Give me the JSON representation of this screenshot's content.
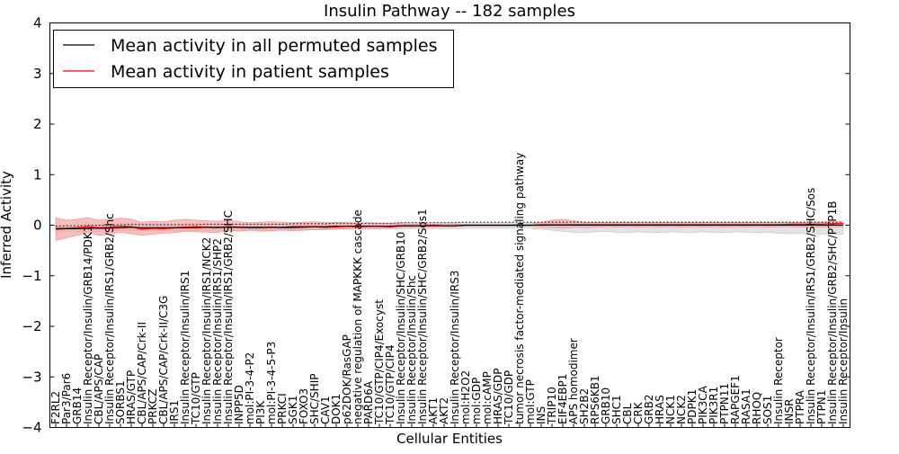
{
  "chart_data": {
    "type": "line",
    "title": "Insulin Pathway -- 182 samples",
    "xlabel": "Cellular Entities",
    "ylabel": "Inferred Activity",
    "ylim": [
      -4,
      4
    ],
    "yticks": [
      -4,
      -3,
      -2,
      -1,
      0,
      1,
      2,
      3,
      4
    ],
    "grid": false,
    "legend_position": "top-left",
    "categories": [
      "F2RL2",
      "Par3/Par6",
      "GRB14",
      "Insulin Receptor/Insulin/GRB14/PDK1",
      "CBL/APS/CAP",
      "Insulin Receptor/Insulin/IRS1/GRB2/Shc",
      "SORBS1",
      "HRAS/GTP",
      "CBL/APS/CAP/Crk-II",
      "PRKCZ",
      "CBL/APS/CAP/Crk-II/C3G",
      "IRS1",
      "Insulin Receptor/Insulin/IRS1",
      "TC10/GTP",
      "Insulin Receptor/Insulin/IRS1/NCK2",
      "Insulin Receptor/Insulin/IRS1/SHP2",
      "Insulin Receptor/Insulin/IRS1/GRB2/SHC",
      "INPP5D",
      "mol:PI-3-4-P2",
      "PI3K",
      "mol:PI-3-4-5-P3",
      "PRKCI",
      "SGK1",
      "FOXO3",
      "SHC/SHIP",
      "CAV1",
      "DOK1",
      "p62DOK/RasGAP",
      "negative regulation of MAPKKK cascade",
      "PARD6A",
      "TC10/GTP/CIP4/Exocyst",
      "TC10/GTP/CIP4",
      "Insulin Receptor/Insulin/SHC/GRB10",
      "Insulin Receptor/Insulin/Shc",
      "Insulin Receptor/Insulin/SHC/GRB2/Sos1",
      "AKT1",
      "AKT2",
      "Insulin Receptor/Insulin/IRS3",
      "mol:H2O2",
      "mol:GDP",
      "mol:cAMP",
      "HRAS/GDP",
      "TC10/GDP",
      "tumor necrosis factor-mediated signaling pathway",
      "mol:GTP",
      "INS",
      "TRIP10",
      "EIF4EBP1",
      "APS homodimer",
      "SH2B2",
      "RPS6KB1",
      "GRB10",
      "SHC1",
      "CBL",
      "CRK",
      "GRB2",
      "HRAS",
      "NCK1",
      "NCK2",
      "PDPK1",
      "PIK3CA",
      "PIK3R1",
      "PTPN11",
      "RAPGEF1",
      "RASA1",
      "RHOQ",
      "SOS1",
      "Insulin Receptor",
      "INSR",
      "PTPRA",
      "Insulin Receptor/Insulin/IRS1/GRB2/SHC/Sos",
      "PTPN1",
      "Insulin Receptor/Insulin/GRB2/SHC/PTP1B",
      "Insulin Receptor/Insulin"
    ],
    "series": [
      {
        "name": "Mean activity in all permuted samples",
        "color": "#000000",
        "values": [
          -0.08,
          -0.07,
          -0.07,
          -0.06,
          -0.06,
          -0.06,
          -0.05,
          -0.04,
          -0.05,
          -0.05,
          -0.05,
          -0.05,
          -0.05,
          -0.05,
          -0.04,
          -0.04,
          -0.04,
          -0.04,
          -0.04,
          -0.04,
          -0.04,
          -0.04,
          -0.03,
          -0.03,
          -0.03,
          -0.03,
          -0.02,
          -0.02,
          -0.02,
          -0.02,
          -0.02,
          -0.02,
          -0.01,
          -0.01,
          -0.01,
          -0.01,
          -0.01,
          -0.01,
          0.0,
          0.0,
          0.0,
          0.0,
          0.0,
          0.0,
          0.0,
          0.0,
          0.0,
          0.0,
          0.0,
          0.0,
          0.0,
          0.0,
          0.0,
          0.0,
          0.0,
          0.0,
          0.0,
          0.0,
          0.0,
          0.0,
          0.0,
          0.0,
          0.0,
          0.0,
          0.0,
          0.0,
          0.0,
          0.0,
          0.0,
          0.0,
          0.0,
          0.0,
          0.0,
          0.0
        ],
        "band_low": [
          -0.14,
          -0.13,
          -0.13,
          -0.12,
          -0.12,
          -0.12,
          -0.11,
          -0.1,
          -0.11,
          -0.11,
          -0.11,
          -0.11,
          -0.11,
          -0.11,
          -0.1,
          -0.1,
          -0.1,
          -0.1,
          -0.1,
          -0.1,
          -0.1,
          -0.1,
          -0.09,
          -0.09,
          -0.09,
          -0.09,
          -0.08,
          -0.08,
          -0.08,
          -0.08,
          -0.08,
          -0.08,
          -0.07,
          -0.07,
          -0.07,
          -0.07,
          -0.07,
          -0.07,
          -0.06,
          -0.06,
          -0.06,
          -0.06,
          -0.06,
          -0.06,
          -0.06,
          -0.08,
          -0.1,
          -0.12,
          -0.14,
          -0.15,
          -0.13,
          -0.12,
          -0.14,
          -0.15,
          -0.13,
          -0.14,
          -0.15,
          -0.13,
          -0.14,
          -0.15,
          -0.13,
          -0.14,
          -0.15,
          -0.13,
          -0.14,
          -0.15,
          -0.14,
          -0.16,
          -0.17,
          -0.16,
          -0.18,
          -0.17,
          -0.19,
          -0.18
        ],
        "band_high": [
          -0.02,
          -0.01,
          -0.01,
          0.0,
          0.0,
          0.0,
          0.01,
          0.02,
          0.01,
          0.01,
          0.01,
          0.01,
          0.01,
          0.01,
          0.02,
          0.02,
          0.02,
          0.02,
          0.02,
          0.02,
          0.02,
          0.02,
          0.03,
          0.03,
          0.03,
          0.03,
          0.04,
          0.04,
          0.04,
          0.04,
          0.04,
          0.04,
          0.05,
          0.05,
          0.05,
          0.05,
          0.05,
          0.05,
          0.06,
          0.06,
          0.06,
          0.06,
          0.06,
          0.06,
          0.06,
          0.06,
          0.06,
          0.06,
          0.06,
          0.06,
          0.06,
          0.06,
          0.06,
          0.06,
          0.06,
          0.06,
          0.06,
          0.06,
          0.06,
          0.06,
          0.06,
          0.06,
          0.06,
          0.06,
          0.06,
          0.06,
          0.06,
          0.06,
          0.06,
          0.06,
          0.06,
          0.06,
          0.06,
          0.06
        ]
      },
      {
        "name": "Mean activity in patient samples",
        "color": "#ff0000",
        "values": [
          -0.06,
          -0.06,
          -0.05,
          -0.03,
          -0.05,
          -0.04,
          -0.02,
          -0.03,
          -0.08,
          -0.06,
          -0.07,
          -0.05,
          -0.04,
          -0.03,
          -0.04,
          -0.05,
          -0.03,
          -0.04,
          -0.05,
          -0.05,
          -0.04,
          -0.05,
          -0.05,
          -0.04,
          -0.03,
          -0.04,
          -0.03,
          -0.02,
          -0.03,
          -0.02,
          -0.02,
          -0.03,
          -0.01,
          -0.01,
          -0.01,
          0.0,
          -0.01,
          -0.01,
          0.0,
          0.0,
          0.0,
          0.0,
          0.0,
          0.0,
          0.0,
          0.01,
          0.01,
          0.01,
          0.01,
          0.01,
          0.01,
          0.01,
          0.01,
          0.01,
          0.01,
          0.01,
          0.01,
          0.01,
          0.01,
          0.01,
          0.01,
          0.01,
          0.01,
          0.01,
          0.01,
          0.01,
          0.01,
          0.01,
          0.02,
          0.02,
          0.02,
          0.02,
          0.03,
          0.03
        ],
        "band_low": [
          -0.3,
          -0.25,
          -0.2,
          -0.15,
          -0.2,
          -0.18,
          -0.14,
          -0.17,
          -0.2,
          -0.18,
          -0.16,
          -0.15,
          -0.12,
          -0.13,
          -0.14,
          -0.15,
          -0.1,
          -0.12,
          -0.1,
          -0.12,
          -0.11,
          -0.1,
          -0.11,
          -0.1,
          -0.09,
          -0.08,
          -0.08,
          -0.07,
          -0.06,
          -0.06,
          -0.06,
          -0.05,
          -0.04,
          -0.04,
          -0.04,
          -0.03,
          -0.03,
          -0.03,
          -0.02,
          -0.02,
          -0.02,
          -0.02,
          -0.02,
          -0.02,
          -0.02,
          -0.04,
          -0.05,
          -0.06,
          -0.04,
          -0.05,
          -0.04,
          -0.03,
          -0.04,
          -0.03,
          -0.04,
          -0.03,
          -0.04,
          -0.03,
          -0.04,
          -0.03,
          -0.04,
          -0.03,
          -0.04,
          -0.03,
          -0.04,
          -0.03,
          -0.04,
          -0.03,
          -0.03,
          -0.04,
          -0.03,
          -0.04,
          -0.03,
          -0.03
        ],
        "band_high": [
          0.15,
          0.1,
          0.12,
          0.15,
          0.1,
          0.12,
          0.14,
          0.12,
          0.06,
          0.08,
          0.07,
          0.1,
          0.12,
          0.1,
          0.09,
          0.08,
          0.1,
          0.07,
          0.05,
          0.06,
          0.07,
          0.06,
          0.05,
          0.06,
          0.07,
          0.05,
          0.06,
          0.05,
          0.04,
          0.05,
          0.04,
          0.03,
          0.03,
          0.02,
          0.03,
          0.02,
          0.02,
          0.02,
          0.02,
          0.02,
          0.02,
          0.02,
          0.02,
          0.02,
          0.02,
          0.06,
          0.1,
          0.12,
          0.09,
          0.06,
          0.05,
          0.05,
          0.05,
          0.05,
          0.05,
          0.05,
          0.05,
          0.05,
          0.05,
          0.05,
          0.05,
          0.05,
          0.05,
          0.05,
          0.05,
          0.05,
          0.05,
          0.05,
          0.06,
          0.06,
          0.06,
          0.06,
          0.07,
          0.07
        ]
      }
    ],
    "reference_line": {
      "style": "dotted",
      "values": [
        -0.02,
        -0.01,
        -0.01,
        0.0,
        0.0,
        0.0,
        0.01,
        0.02,
        0.01,
        0.01,
        0.01,
        0.01,
        0.01,
        0.01,
        0.02,
        0.02,
        0.02,
        0.02,
        0.02,
        0.02,
        0.02,
        0.02,
        0.03,
        0.03,
        0.03,
        0.03,
        0.04,
        0.04,
        0.04,
        0.04,
        0.04,
        0.04,
        0.05,
        0.05,
        0.05,
        0.05,
        0.05,
        0.05,
        0.06,
        0.06,
        0.06,
        0.06,
        0.06,
        0.06,
        0.06,
        0.06,
        0.06,
        0.06,
        0.06,
        0.06,
        0.06,
        0.06,
        0.06,
        0.06,
        0.06,
        0.06,
        0.06,
        0.06,
        0.06,
        0.06,
        0.06,
        0.06,
        0.06,
        0.06,
        0.06,
        0.06,
        0.06,
        0.06,
        0.06,
        0.06,
        0.06,
        0.06,
        0.06,
        0.06
      ]
    },
    "band_colors": {
      "permuted": "#d9d9d9",
      "patient": "#f4a3a3"
    }
  }
}
